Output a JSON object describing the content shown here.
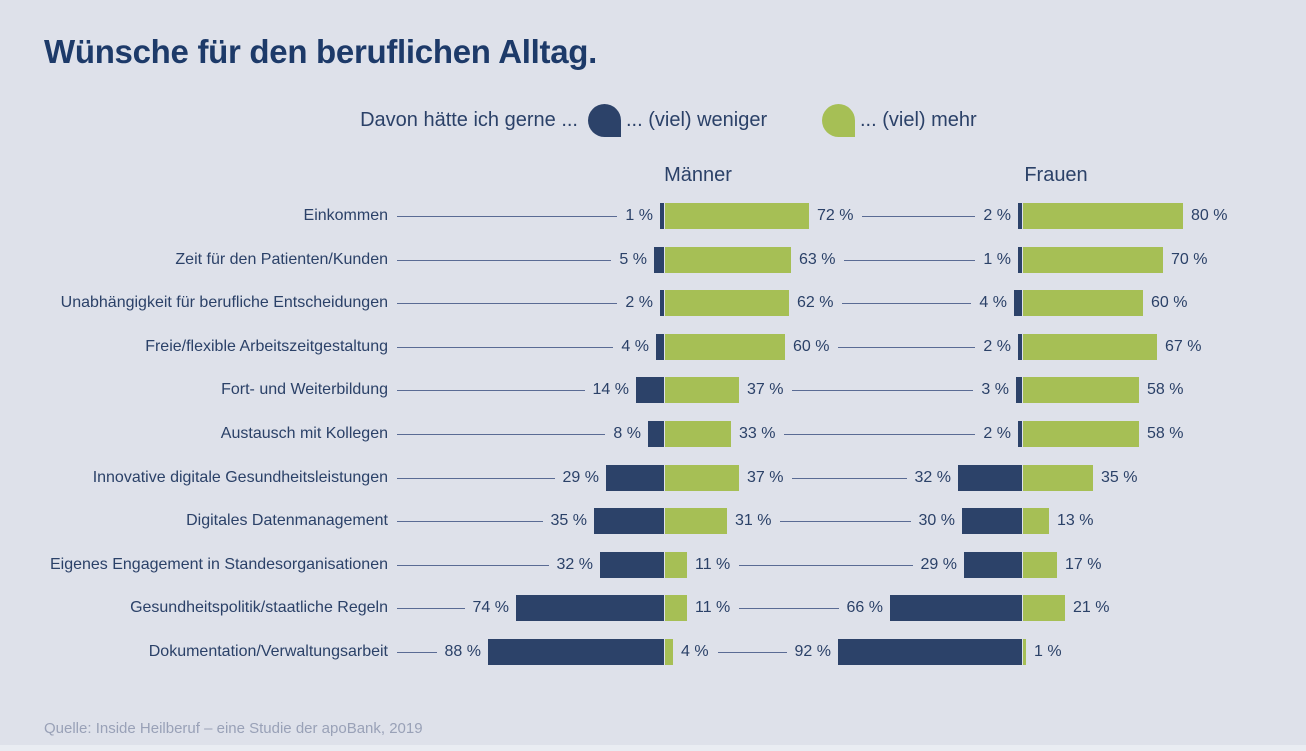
{
  "title": "Wünsche für den beruflichen Alltag.",
  "legend": {
    "prompt": "Davon hätte ich gerne ...",
    "less_label": "... (viel) weniger",
    "more_label": "... (viel) mehr"
  },
  "source": "Quelle: Inside Heilberuf – eine Studie der apoBank, 2019",
  "colors": {
    "background": "#dee1ea",
    "navy": "#2c4269",
    "green": "#a6bf55",
    "title_text": "#1d3a69",
    "connector_line": "#5a6b94",
    "source_text": "#99a1b7"
  },
  "chart_data": {
    "type": "bar",
    "subtype": "diverging-horizontal-paired",
    "unit": "%",
    "value_suffix": " %",
    "categories": [
      "Einkommen",
      "Zeit für den Patienten/Kunden",
      "Unabhängigkeit für berufliche Entscheidungen",
      "Freie/flexible Arbeitszeitgestaltung",
      "Fort- und Weiterbildung",
      "Austausch mit Kollegen",
      "Innovative digitale Gesundheitsleistungen",
      "Digitales Datenmanagement",
      "Eigenes Engagement in Standesorganisationen",
      "Gesundheitspolitik/staatliche Regeln",
      "Dokumentation/Verwaltungsarbeit"
    ],
    "groups": [
      {
        "name": "Männer",
        "series": [
          {
            "name": "... (viel) weniger",
            "values": [
              1,
              5,
              2,
              4,
              14,
              8,
              29,
              35,
              32,
              74,
              88
            ]
          },
          {
            "name": "... (viel) mehr",
            "values": [
              72,
              63,
              62,
              60,
              37,
              33,
              37,
              31,
              11,
              11,
              4
            ]
          }
        ]
      },
      {
        "name": "Frauen",
        "series": [
          {
            "name": "... (viel) weniger",
            "values": [
              2,
              1,
              4,
              2,
              3,
              2,
              32,
              30,
              29,
              66,
              92
            ]
          },
          {
            "name": "... (viel) mehr",
            "values": [
              80,
              70,
              60,
              67,
              58,
              58,
              35,
              13,
              17,
              21,
              1
            ]
          }
        ]
      }
    ],
    "axis_range_per_side": [
      0,
      100
    ],
    "grid": false,
    "legend_position": "top"
  }
}
